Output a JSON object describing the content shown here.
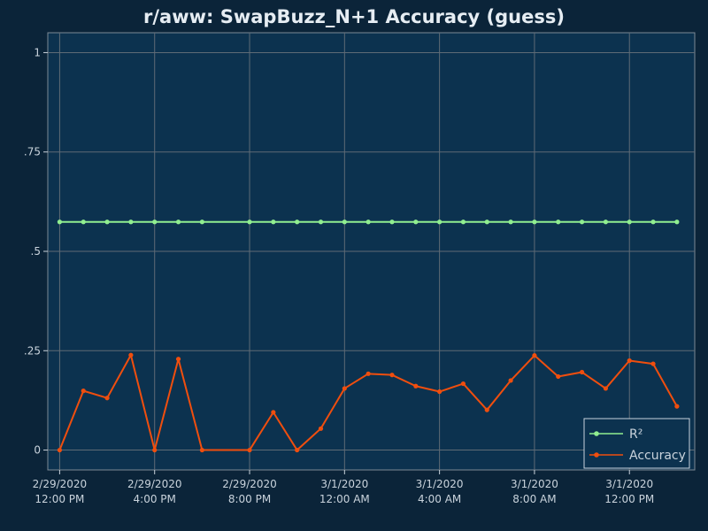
{
  "chart_data": {
    "type": "line",
    "title": "r/aww: SwapBuzz_N+1 Accuracy (guess)",
    "xlabel": "",
    "ylabel": "",
    "x": [
      "2020-02-29 12:00",
      "2020-02-29 13:00",
      "2020-02-29 14:00",
      "2020-02-29 15:00",
      "2020-02-29 16:00",
      "2020-02-29 17:00",
      "2020-02-29 18:00",
      "2020-02-29 20:00",
      "2020-02-29 21:00",
      "2020-02-29 22:00",
      "2020-02-29 23:00",
      "2020-03-01 00:00",
      "2020-03-01 01:00",
      "2020-03-01 02:00",
      "2020-03-01 03:00",
      "2020-03-01 04:00",
      "2020-03-01 05:00",
      "2020-03-01 06:00",
      "2020-03-01 07:00",
      "2020-03-01 08:00",
      "2020-03-01 09:00",
      "2020-03-01 10:00",
      "2020-03-01 11:00",
      "2020-03-01 12:00",
      "2020-03-01 13:00",
      "2020-03-01 14:00"
    ],
    "series": [
      {
        "name": "R²",
        "color": "#90ee90",
        "values": [
          0.574,
          0.574,
          0.574,
          0.574,
          0.574,
          0.574,
          0.574,
          0.574,
          0.574,
          0.574,
          0.574,
          0.574,
          0.574,
          0.574,
          0.574,
          0.574,
          0.574,
          0.574,
          0.574,
          0.574,
          0.574,
          0.574,
          0.574,
          0.574,
          0.574,
          0.574
        ]
      },
      {
        "name": "Accuracy",
        "color": "#f04e0e",
        "values": [
          0.0,
          0.149,
          0.131,
          0.239,
          0.0,
          0.229,
          0.0,
          0.0,
          0.095,
          0.0,
          0.054,
          0.155,
          0.192,
          0.189,
          0.161,
          0.147,
          0.167,
          0.101,
          0.175,
          0.238,
          0.185,
          0.196,
          0.155,
          0.225,
          0.217,
          0.11
        ]
      }
    ],
    "yticks": [
      {
        "value": 0,
        "label": "0"
      },
      {
        "value": 0.25,
        "label": ".25"
      },
      {
        "value": 0.5,
        "label": ".5"
      },
      {
        "value": 0.75,
        "label": ".75"
      },
      {
        "value": 1,
        "label": "1"
      }
    ],
    "xticks": [
      {
        "value": "2020-02-29 12:00",
        "date": "2/29/2020",
        "time": "12:00 PM"
      },
      {
        "value": "2020-02-29 16:00",
        "date": "2/29/2020",
        "time": "4:00 PM"
      },
      {
        "value": "2020-02-29 20:00",
        "date": "2/29/2020",
        "time": "8:00 PM"
      },
      {
        "value": "2020-03-01 00:00",
        "date": "3/1/2020",
        "time": "12:00 AM"
      },
      {
        "value": "2020-03-01 04:00",
        "date": "3/1/2020",
        "time": "4:00 AM"
      },
      {
        "value": "2020-03-01 08:00",
        "date": "3/1/2020",
        "time": "8:00 AM"
      },
      {
        "value": "2020-03-01 12:00",
        "date": "3/1/2020",
        "time": "12:00 PM"
      }
    ],
    "xlim": [
      "2020-02-29 11:30",
      "2020-03-01 14:45"
    ],
    "ylim": [
      -0.05,
      1.05
    ],
    "grid": true,
    "legend_position": "bottom-right",
    "colors": {
      "page_background": "#0b2439",
      "plot_background": "#0c324f",
      "grid": "#5f6b76",
      "text": "#c9d3dc",
      "title": "#e6edf3"
    }
  }
}
